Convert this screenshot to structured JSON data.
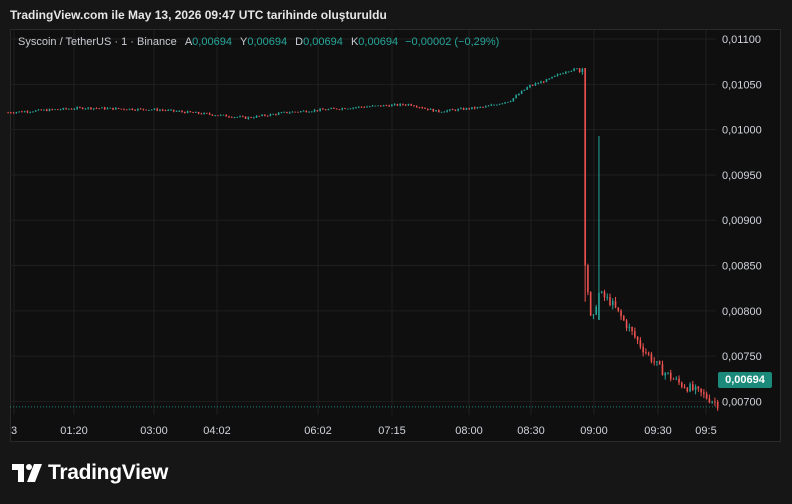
{
  "header": {
    "created_text": "TradingView.com ile May 13, 2026 09:47 UTC tarihinde oluşturuldu"
  },
  "legend": {
    "symbol": "Syscoin / TetherUS · 1 · Binance",
    "open_label": "A",
    "open_value": "0,00694",
    "high_label": "Y",
    "high_value": "0,00694",
    "low_label": "D",
    "low_value": "0,00694",
    "close_label": "K",
    "close_value": "0,00694",
    "change": "−0,00002 (−0,29%)"
  },
  "price_tag": "0,00694",
  "brand": {
    "name": "TradingView"
  },
  "colors": {
    "up": "#26a69a",
    "down": "#ef5350",
    "background": "#0f0f0f",
    "grid": "#1f1f1f"
  },
  "chart_data": {
    "type": "candlestick",
    "title": "Syscoin / TetherUS · 1 · Binance",
    "y_ticks": [
      "0,01100",
      "0,01050",
      "0,01000",
      "0,00950",
      "0,00900",
      "0,00850",
      "0,00800",
      "0,00750",
      "0,00700"
    ],
    "ylim": [
      0.00685,
      0.0111
    ],
    "x_ticks": [
      "3",
      "01:20",
      "03:00",
      "04:02",
      "06:02",
      "07:15",
      "08:00",
      "08:30",
      "09:00",
      "09:30",
      "09:5"
    ],
    "last_price": 0.00694,
    "grid": true,
    "series": [
      {
        "t": "00:20",
        "close": 0.01019
      },
      {
        "t": "01:20",
        "close": 0.01024
      },
      {
        "t": "02:20",
        "close": 0.01022
      },
      {
        "t": "03:00",
        "close": 0.01017
      },
      {
        "t": "03:30",
        "close": 0.01013
      },
      {
        "t": "04:02",
        "close": 0.01019
      },
      {
        "t": "05:00",
        "close": 0.01025
      },
      {
        "t": "05:40",
        "close": 0.01028
      },
      {
        "t": "06:02",
        "close": 0.0102
      },
      {
        "t": "06:40",
        "close": 0.01025
      },
      {
        "t": "07:00",
        "close": 0.01032
      },
      {
        "t": "07:15",
        "close": 0.01048
      },
      {
        "t": "07:30",
        "close": 0.01055
      },
      {
        "t": "07:45",
        "close": 0.01065
      },
      {
        "t": "07:58",
        "close": 0.01068
      },
      {
        "t": "08:00",
        "open": 0.01068,
        "high": 0.01068,
        "low": 0.0081,
        "close": 0.0085
      },
      {
        "t": "08:05",
        "close": 0.0078
      },
      {
        "t": "08:10",
        "open": 0.0079,
        "high": 0.00993,
        "low": 0.0079,
        "close": 0.0082
      },
      {
        "t": "08:20",
        "close": 0.0081
      },
      {
        "t": "08:30",
        "close": 0.0079
      },
      {
        "t": "08:45",
        "close": 0.0076
      },
      {
        "t": "09:00",
        "close": 0.00735
      },
      {
        "t": "09:15",
        "close": 0.0072
      },
      {
        "t": "09:30",
        "close": 0.0071
      },
      {
        "t": "09:45",
        "close": 0.00698
      },
      {
        "t": "09:47",
        "close": 0.00694
      }
    ]
  }
}
